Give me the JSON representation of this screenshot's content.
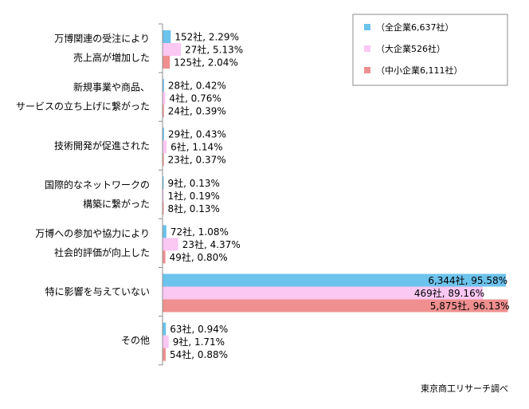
{
  "chart_data": {
    "type": "bar",
    "orientation": "horizontal",
    "xlim": [
      0,
      100
    ],
    "grid": false,
    "legend_position": "top-right",
    "categories": [
      [
        "万博関連の受注により",
        "売上高が増加した"
      ],
      [
        "新規事業や商品、",
        "サービスの立ち上げに繋がった"
      ],
      [
        "技術開発が促進された"
      ],
      [
        "国際的なネットワークの",
        "構築に繋がった"
      ],
      [
        "万博への参加や協力により",
        "社会的評価が向上した"
      ],
      [
        "特に影響を与えていない"
      ],
      [
        "その他"
      ]
    ],
    "series": [
      {
        "name": "（全企業6,637社）",
        "color": "#6cc3ec",
        "values": [
          2.29,
          0.42,
          0.43,
          0.13,
          1.08,
          95.58,
          0.94
        ],
        "labels": [
          "152社, 2.29%",
          "28社, 0.42%",
          "29社, 0.43%",
          "9社, 0.13%",
          "72社, 1.08%",
          "6,344社, 95.58%",
          "63社, 0.94%"
        ]
      },
      {
        "name": "（大企業526社）",
        "color": "#fbc7f3",
        "values": [
          5.13,
          0.76,
          1.14,
          0.19,
          4.37,
          89.16,
          1.71
        ],
        "labels": [
          "27社, 5.13%",
          "4社, 0.76%",
          "6社, 1.14%",
          "1社, 0.19%",
          "23社, 4.37%",
          "469社, 89.16%",
          "9社, 1.71%"
        ]
      },
      {
        "name": "（中小企業6,111社）",
        "color": "#ef8f8f",
        "values": [
          2.04,
          0.39,
          0.37,
          0.13,
          0.8,
          96.13,
          0.88
        ],
        "labels": [
          "125社, 2.04%",
          "24社, 0.39%",
          "23社, 0.37%",
          "8社, 0.13%",
          "49社, 0.80%",
          "5,875社, 96.13%",
          "54社, 0.88%"
        ]
      }
    ],
    "source": "東京商工リサーチ調べ"
  }
}
